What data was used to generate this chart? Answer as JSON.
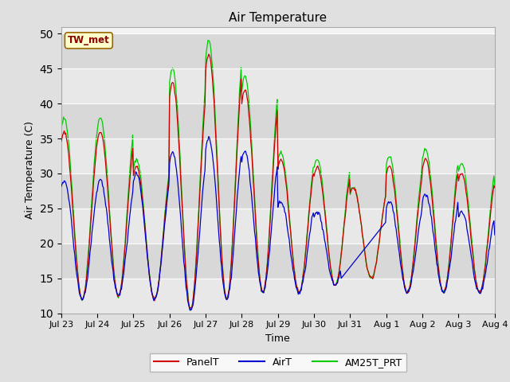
{
  "title": "Air Temperature",
  "ylabel": "Air Temperature (C)",
  "xlabel": "Time",
  "annotation": "TW_met",
  "ylim": [
    10,
    51
  ],
  "yticks": [
    10,
    15,
    20,
    25,
    30,
    35,
    40,
    45,
    50
  ],
  "line_colors": {
    "PanelT": "#cc0000",
    "AirT": "#0000cc",
    "AM25T_PRT": "#00cc00"
  },
  "time_labels": [
    "Jul 23",
    "Jul 24",
    "Jul 25",
    "Jul 26",
    "Jul 27",
    "Jul 28",
    "Jul 29",
    "Jul 30",
    "Jul 31",
    "Aug 1",
    "Aug 2",
    "Aug 3",
    "Aug 4"
  ],
  "n_days": 12,
  "figsize": [
    6.4,
    4.8
  ],
  "dpi": 100
}
